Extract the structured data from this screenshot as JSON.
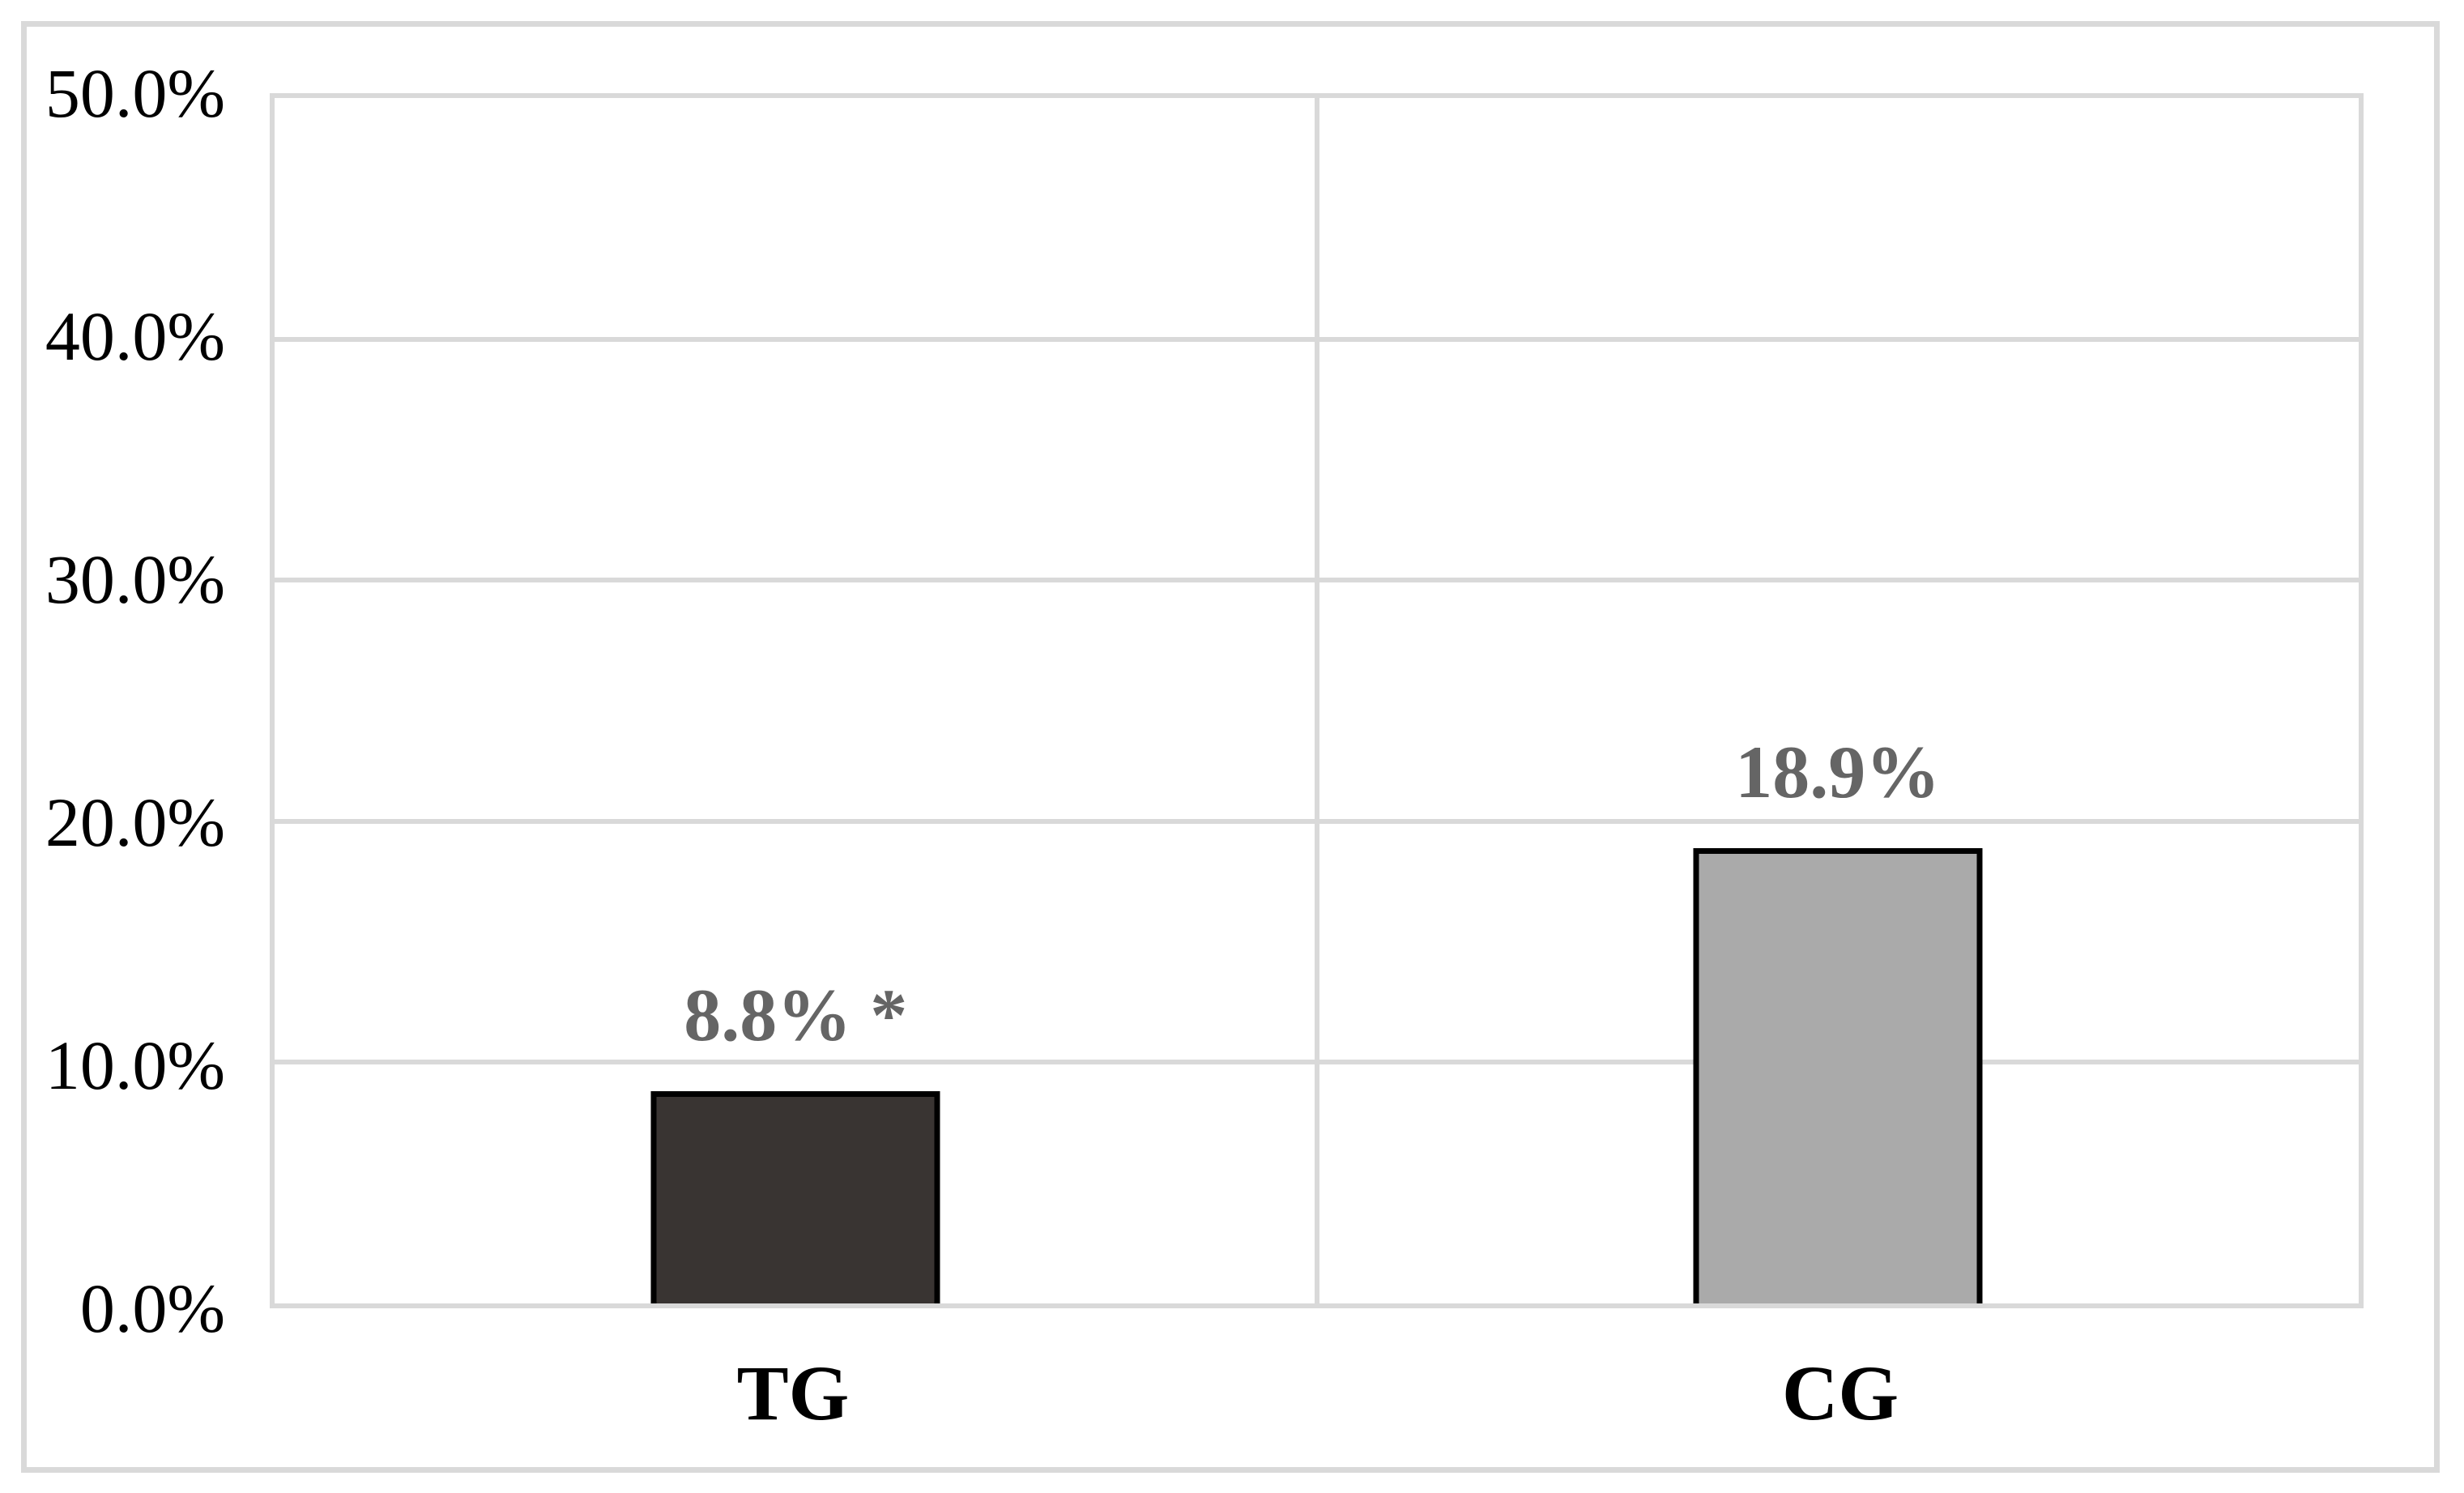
{
  "chart_data": {
    "type": "bar",
    "title": "",
    "xlabel": "",
    "ylabel": "",
    "categories": [
      "TG",
      "CG"
    ],
    "values": [
      8.8,
      18.9
    ],
    "value_labels": [
      "8.8% *",
      "18.9%"
    ],
    "significance_marker": "*",
    "ylim": [
      0,
      50
    ],
    "ytick_interval": 10,
    "ytick_labels": [
      "50.0%",
      "40.0%",
      "30.0%",
      "20.0%",
      "10.0%",
      "0.0%"
    ],
    "grid": true,
    "legend": "none",
    "bar_colors": [
      "#393432",
      "#aaaaaa"
    ],
    "bar_border_color": "#000000",
    "gridline_color": "#d9d9d9",
    "frame_color": "#d9d9d9",
    "data_label_color": "#656565",
    "axis_text_color": "#000000",
    "background_color": "#ffffff"
  }
}
